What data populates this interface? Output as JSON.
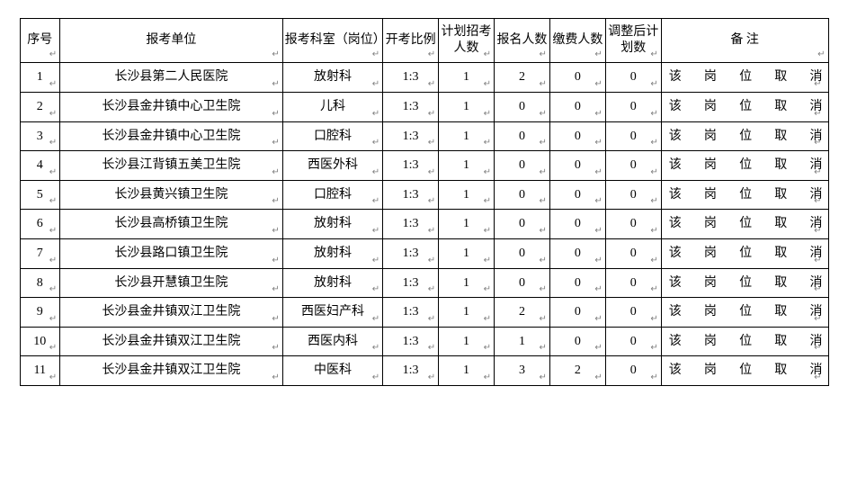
{
  "headers": {
    "seq": "序号",
    "unit": "报考单位",
    "dept": "报考科室（岗位）",
    "ratio": "开考比例",
    "plan": "计划招考人数",
    "apply": "报名人数",
    "pay": "缴费人数",
    "adj": "调整后计划数",
    "note": "备 注"
  },
  "rows": [
    {
      "seq": "1",
      "unit": "长沙县第二人民医院",
      "dept": "放射科",
      "ratio": "1:3",
      "plan": "1",
      "apply": "2",
      "pay": "0",
      "adj": "0",
      "note": "该岗位取消"
    },
    {
      "seq": "2",
      "unit": "长沙县金井镇中心卫生院",
      "dept": "儿科",
      "ratio": "1:3",
      "plan": "1",
      "apply": "0",
      "pay": "0",
      "adj": "0",
      "note": "该岗位取消"
    },
    {
      "seq": "3",
      "unit": "长沙县金井镇中心卫生院",
      "dept": "口腔科",
      "ratio": "1:3",
      "plan": "1",
      "apply": "0",
      "pay": "0",
      "adj": "0",
      "note": "该岗位取消"
    },
    {
      "seq": "4",
      "unit": "长沙县江背镇五美卫生院",
      "dept": "西医外科",
      "ratio": "1:3",
      "plan": "1",
      "apply": "0",
      "pay": "0",
      "adj": "0",
      "note": "该岗位取消"
    },
    {
      "seq": "5",
      "unit": "长沙县黄兴镇卫生院",
      "dept": "口腔科",
      "ratio": "1:3",
      "plan": "1",
      "apply": "0",
      "pay": "0",
      "adj": "0",
      "note": "该岗位取消"
    },
    {
      "seq": "6",
      "unit": "长沙县高桥镇卫生院",
      "dept": "放射科",
      "ratio": "1:3",
      "plan": "1",
      "apply": "0",
      "pay": "0",
      "adj": "0",
      "note": "该岗位取消"
    },
    {
      "seq": "7",
      "unit": "长沙县路口镇卫生院",
      "dept": "放射科",
      "ratio": "1:3",
      "plan": "1",
      "apply": "0",
      "pay": "0",
      "adj": "0",
      "note": "该岗位取消"
    },
    {
      "seq": "8",
      "unit": "长沙县开慧镇卫生院",
      "dept": "放射科",
      "ratio": "1:3",
      "plan": "1",
      "apply": "0",
      "pay": "0",
      "adj": "0",
      "note": "该岗位取消"
    },
    {
      "seq": "9",
      "unit": "长沙县金井镇双江卫生院",
      "dept": "西医妇产科",
      "ratio": "1:3",
      "plan": "1",
      "apply": "2",
      "pay": "0",
      "adj": "0",
      "note": "该岗位取消"
    },
    {
      "seq": "10",
      "unit": "长沙县金井镇双江卫生院",
      "dept": "西医内科",
      "ratio": "1:3",
      "plan": "1",
      "apply": "1",
      "pay": "0",
      "adj": "0",
      "note": "该岗位取消"
    },
    {
      "seq": "11",
      "unit": "长沙县金井镇双江卫生院",
      "dept": "中医科",
      "ratio": "1:3",
      "plan": "1",
      "apply": "3",
      "pay": "2",
      "adj": "0",
      "note": "该岗位取消"
    }
  ],
  "marker": "↵"
}
